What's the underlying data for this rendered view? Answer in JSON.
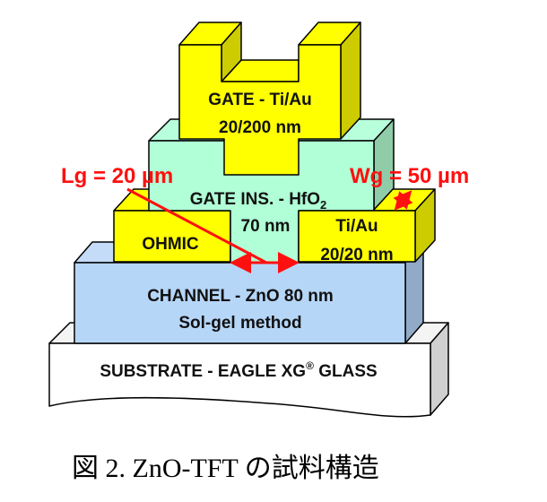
{
  "layers": {
    "gate": {
      "line1": "GATE - Ti/Au",
      "line2": "20/200 nm"
    },
    "insulator": {
      "line1": "GATE INS. - HfO",
      "subscript": "2",
      "line2": "70 nm"
    },
    "ohmic_left": {
      "label": "OHMIC"
    },
    "ohmic_right": {
      "line1": "Ti/Au",
      "line2": "20/20 nm"
    },
    "channel": {
      "line1": "CHANNEL - ZnO 80 nm",
      "line2": "Sol-gel method"
    },
    "substrate": {
      "label": "SUBSTRATE - EAGLE XG",
      "mark": "®",
      "label_end": " GLASS"
    }
  },
  "annotations": {
    "lg": "Lg = 20 µm",
    "wg": "Wg = 50 µm"
  },
  "caption": "図 2.  ZnO-TFT の試料構造",
  "colors": {
    "gate": "#ffff00",
    "insulator": "#b0ffd6",
    "channel": "#b6d6f8",
    "substrate": "#ffffff",
    "annotation": "#ff1010"
  }
}
